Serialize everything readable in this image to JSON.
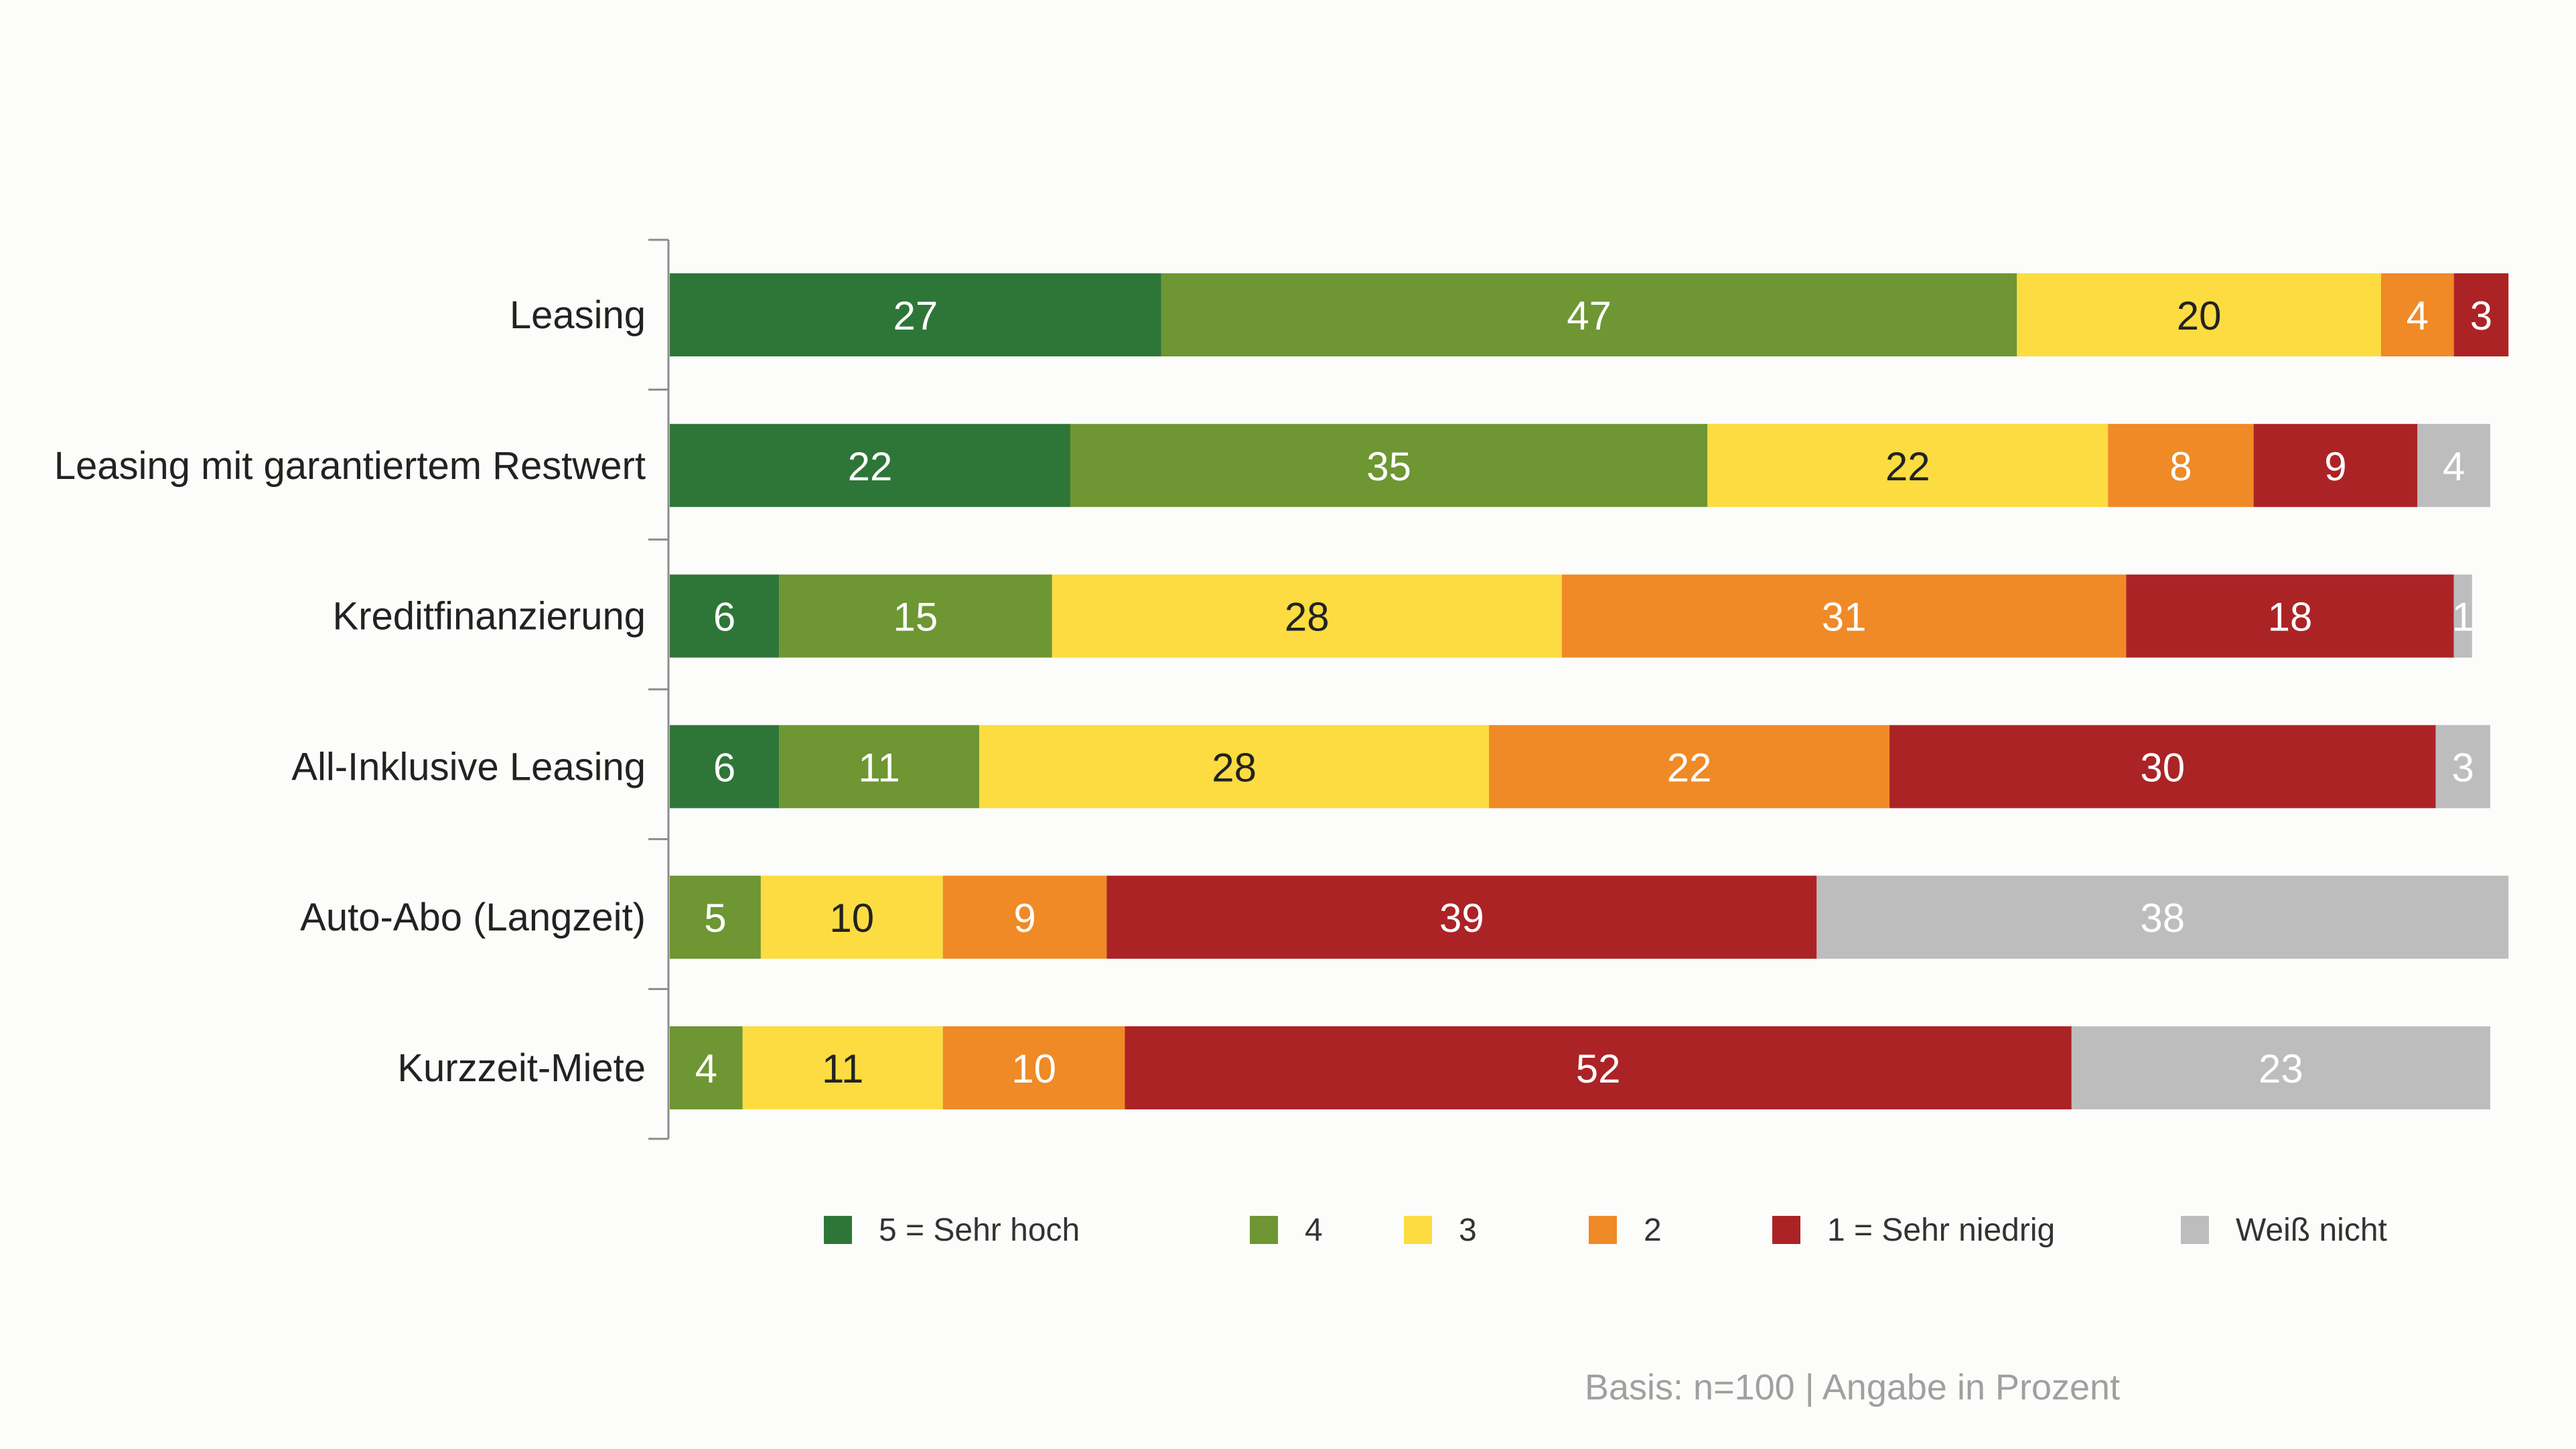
{
  "chart_data": {
    "type": "bar",
    "orientation": "horizontal",
    "stacked": true,
    "categories": [
      "Leasing",
      "Leasing mit garantiertem Restwert",
      "Kreditfinanzierung",
      "All-Inklusive Leasing",
      "Auto-Abo (Langzeit)",
      "Kurzzeit-Miete"
    ],
    "series": [
      {
        "name": "5 = Sehr hoch",
        "color": "#2e7638",
        "values": [
          27,
          22,
          6,
          6,
          0,
          0
        ]
      },
      {
        "name": "4",
        "color": "#6e9633",
        "values": [
          47,
          35,
          15,
          11,
          5,
          4
        ]
      },
      {
        "name": "3",
        "color": "#fcdc40",
        "values": [
          20,
          22,
          28,
          28,
          10,
          11
        ]
      },
      {
        "name": "2",
        "color": "#ef8a26",
        "values": [
          4,
          8,
          31,
          22,
          9,
          10
        ]
      },
      {
        "name": "1 = Sehr niedrig",
        "color": "#ac2326",
        "values": [
          3,
          9,
          18,
          30,
          39,
          52
        ]
      },
      {
        "name": "Weiß nicht",
        "color": "#bdbdbd",
        "values": [
          0,
          4,
          1,
          3,
          38,
          23
        ]
      }
    ],
    "xlim": [
      0,
      100
    ],
    "grid": false,
    "legend_position": "bottom",
    "footnote": "Basis: n=100 | Angabe in Prozent"
  }
}
